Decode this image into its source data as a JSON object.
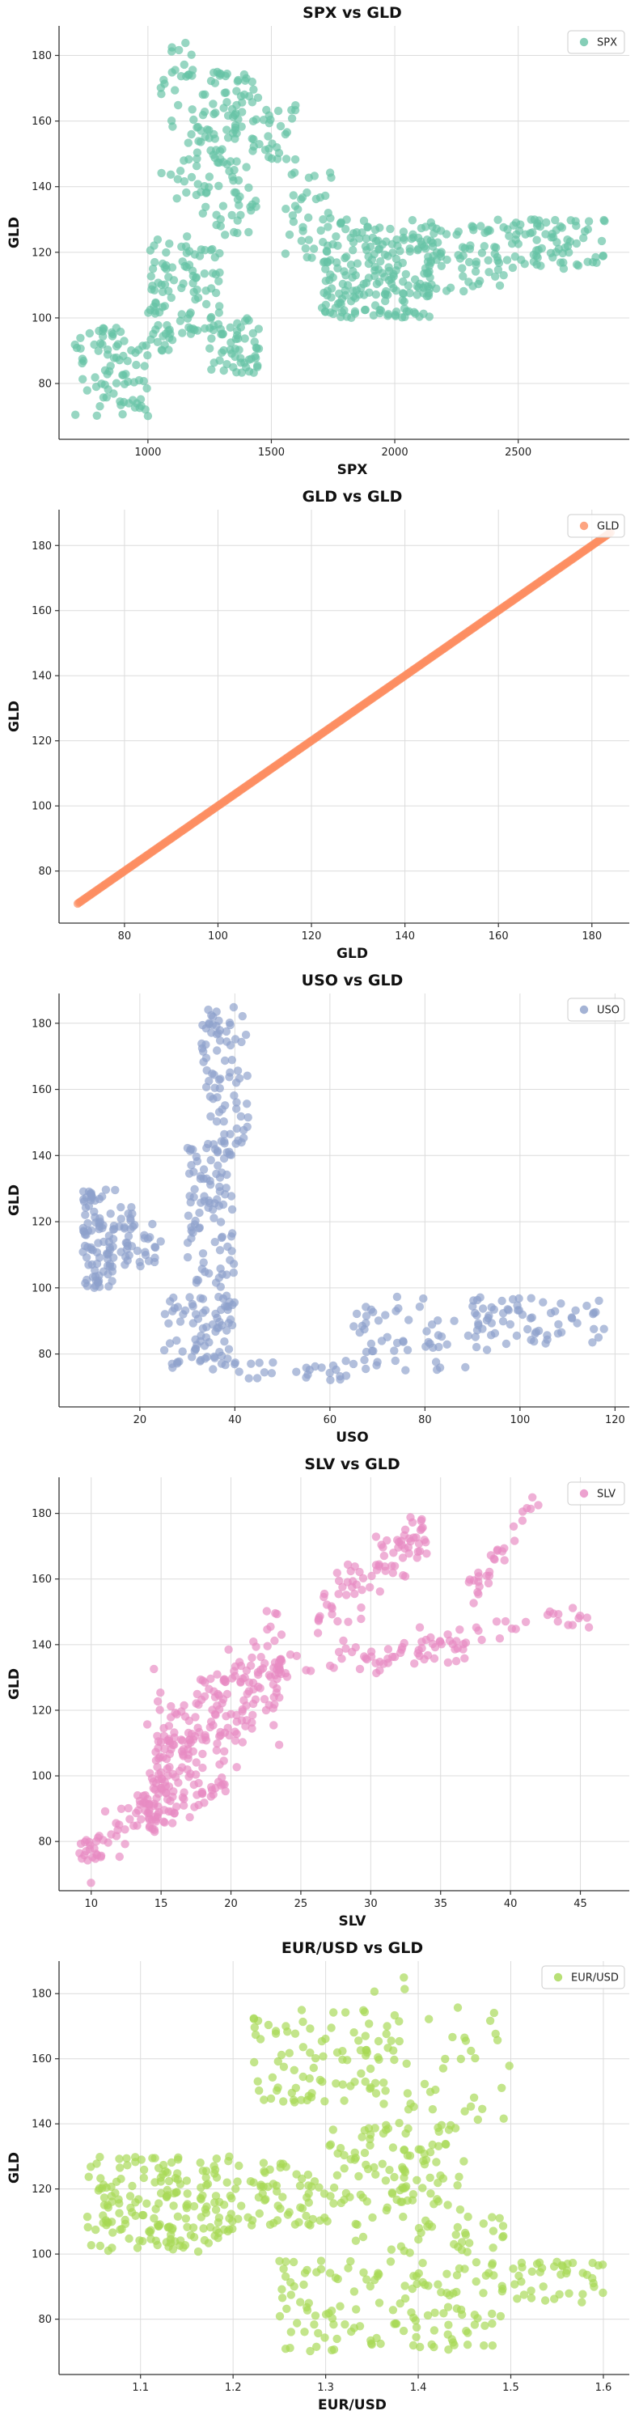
{
  "chart_data": [
    {
      "type": "scatter",
      "title": "SPX vs GLD",
      "xlabel": "SPX",
      "ylabel": "GLD",
      "xlim": [
        640,
        2950
      ],
      "ylim": [
        63,
        189
      ],
      "xticks": [
        1000,
        1500,
        2000,
        2500
      ],
      "yticks": [
        80,
        100,
        120,
        140,
        160,
        180
      ],
      "grid": true,
      "legend": {
        "position": "top-right",
        "entries": [
          "SPX"
        ]
      },
      "color": "#66c2a5",
      "clusters": [
        {
          "x": [
            700,
            1000
          ],
          "y": [
            70,
            98
          ],
          "n": 80
        },
        {
          "x": [
            1000,
            1100
          ],
          "y": [
            90,
            125
          ],
          "n": 50
        },
        {
          "x": [
            1100,
            1300
          ],
          "y": [
            95,
            125
          ],
          "n": 60
        },
        {
          "x": [
            1250,
            1450
          ],
          "y": [
            83,
            100
          ],
          "n": 50
        },
        {
          "x": [
            1050,
            1200
          ],
          "y": [
            135,
            185
          ],
          "n": 40
        },
        {
          "x": [
            1200,
            1450
          ],
          "y": [
            125,
            175
          ],
          "n": 120
        },
        {
          "x": [
            1450,
            1600
          ],
          "y": [
            148,
            165
          ],
          "n": 25
        },
        {
          "x": [
            1550,
            1750
          ],
          "y": [
            118,
            145
          ],
          "n": 35
        },
        {
          "x": [
            1700,
            2150
          ],
          "y": [
            100,
            130
          ],
          "n": 200
        },
        {
          "x": [
            2100,
            2450
          ],
          "y": [
            108,
            128
          ],
          "n": 70
        },
        {
          "x": [
            2400,
            2850
          ],
          "y": [
            115,
            130
          ],
          "n": 80
        }
      ]
    },
    {
      "type": "scatter",
      "title": "GLD vs GLD",
      "xlabel": "GLD",
      "ylabel": "GLD",
      "xlim": [
        66,
        188
      ],
      "ylim": [
        64,
        191
      ],
      "xticks": [
        80,
        100,
        120,
        140,
        160,
        180
      ],
      "yticks": [
        80,
        100,
        120,
        140,
        160,
        180
      ],
      "grid": true,
      "legend": {
        "position": "top-right",
        "entries": [
          "GLD"
        ]
      },
      "color": "#fc8d62",
      "line": {
        "from": 70,
        "to": 184,
        "n": 400
      }
    },
    {
      "type": "scatter",
      "title": "USO vs GLD",
      "xlabel": "USO",
      "ylabel": "GLD",
      "xlim": [
        3,
        123
      ],
      "ylim": [
        64,
        189
      ],
      "xticks": [
        20,
        40,
        60,
        80,
        100,
        120
      ],
      "yticks": [
        80,
        100,
        120,
        140,
        160,
        180
      ],
      "grid": true,
      "legend": {
        "position": "top-right",
        "entries": [
          "USO"
        ]
      },
      "color": "#8da0cb",
      "clusters": [
        {
          "x": [
            8,
            15
          ],
          "y": [
            100,
            130
          ],
          "n": 90
        },
        {
          "x": [
            15,
            25
          ],
          "y": [
            105,
            125
          ],
          "n": 40
        },
        {
          "x": [
            25,
            40
          ],
          "y": [
            75,
            98
          ],
          "n": 80
        },
        {
          "x": [
            30,
            40
          ],
          "y": [
            100,
            145
          ],
          "n": 90
        },
        {
          "x": [
            33,
            43
          ],
          "y": [
            140,
            185
          ],
          "n": 80
        },
        {
          "x": [
            40,
            65
          ],
          "y": [
            70,
            78
          ],
          "n": 25
        },
        {
          "x": [
            65,
            95
          ],
          "y": [
            75,
            98
          ],
          "n": 60
        },
        {
          "x": [
            90,
            118
          ],
          "y": [
            83,
            97
          ],
          "n": 60
        }
      ]
    },
    {
      "type": "scatter",
      "title": "SLV vs GLD",
      "xlabel": "SLV",
      "ylabel": "GLD",
      "xlim": [
        7.7,
        48.5
      ],
      "ylim": [
        65,
        191
      ],
      "xticks": [
        10,
        15,
        20,
        25,
        30,
        35,
        40,
        45
      ],
      "yticks": [
        80,
        100,
        120,
        140,
        160,
        180
      ],
      "grid": true,
      "legend": {
        "position": "top-right",
        "entries": [
          "SLV"
        ]
      },
      "color": "#e78ac3",
      "bands": [
        {
          "x0": 9,
          "y0": 73,
          "x1": 16,
          "y1": 97,
          "n": 70,
          "w": 3
        },
        {
          "x0": 14,
          "y0": 85,
          "x1": 20,
          "y1": 98,
          "n": 40,
          "w": 2
        },
        {
          "x0": 14,
          "y0": 100,
          "x1": 24,
          "y1": 135,
          "n": 220,
          "w": 9
        },
        {
          "x0": 20,
          "y0": 130,
          "x1": 37,
          "y1": 140,
          "n": 60,
          "w": 3
        },
        {
          "x0": 26,
          "y0": 150,
          "x1": 34,
          "y1": 175,
          "n": 80,
          "w": 4
        },
        {
          "x0": 33,
          "y0": 140,
          "x1": 46,
          "y1": 148,
          "n": 35,
          "w": 3
        },
        {
          "x0": 37,
          "y0": 155,
          "x1": 42,
          "y1": 185,
          "n": 30,
          "w": 3
        }
      ]
    },
    {
      "type": "scatter",
      "title": "EUR/USD vs GLD",
      "xlabel": "EUR/USD",
      "ylabel": "GLD",
      "xlim": [
        1.012,
        1.628
      ],
      "ylim": [
        63,
        190
      ],
      "xticks": [
        1.1,
        1.2,
        1.3,
        1.4,
        1.5,
        1.6
      ],
      "yticks": [
        80,
        100,
        120,
        140,
        160,
        180
      ],
      "grid": true,
      "legend": {
        "position": "top-right",
        "entries": [
          "EUR/USD"
        ]
      },
      "color": "#a6d854",
      "clusters": [
        {
          "x": [
            1.04,
            1.2
          ],
          "y": [
            100,
            130
          ],
          "n": 180
        },
        {
          "x": [
            1.2,
            1.3
          ],
          "y": [
            108,
            128
          ],
          "n": 60
        },
        {
          "x": [
            1.22,
            1.38
          ],
          "y": [
            145,
            175
          ],
          "n": 90
        },
        {
          "x": [
            1.35,
            1.5
          ],
          "y": [
            140,
            185
          ],
          "n": 40
        },
        {
          "x": [
            1.3,
            1.45
          ],
          "y": [
            115,
            140
          ],
          "n": 100
        },
        {
          "x": [
            1.3,
            1.5
          ],
          "y": [
            100,
            115
          ],
          "n": 40
        },
        {
          "x": [
            1.25,
            1.5
          ],
          "y": [
            70,
            98
          ],
          "n": 140
        },
        {
          "x": [
            1.5,
            1.6
          ],
          "y": [
            85,
            98
          ],
          "n": 40
        }
      ]
    }
  ]
}
